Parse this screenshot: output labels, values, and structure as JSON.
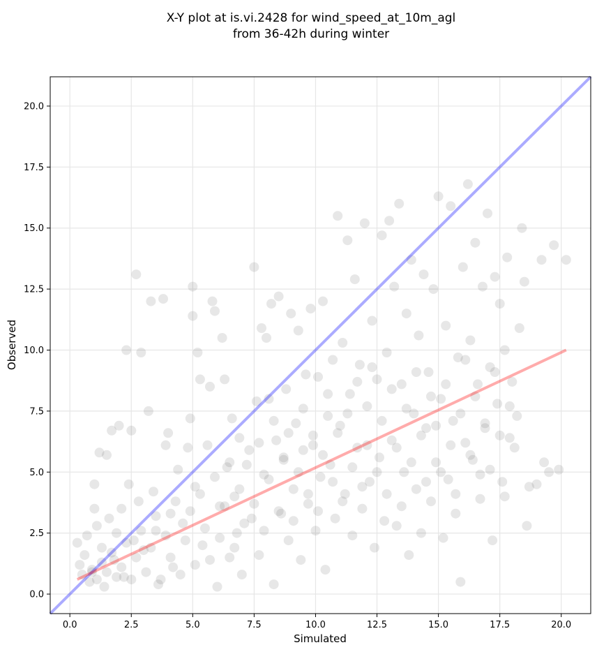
{
  "chart_data": {
    "type": "scatter",
    "title_lines": [
      "X-Y plot at is.vi.2428 for wind_speed_at_10m_agl",
      "from 36-42h during winter"
    ],
    "xlabel": "Simulated",
    "ylabel": "Observed",
    "xlim": [
      -0.8,
      21.2
    ],
    "ylim": [
      -0.8,
      21.2
    ],
    "x_ticks": [
      0.0,
      2.5,
      5.0,
      7.5,
      10.0,
      12.5,
      15.0,
      17.5,
      20.0
    ],
    "y_ticks": [
      0.0,
      2.5,
      5.0,
      7.5,
      10.0,
      12.5,
      15.0,
      17.5,
      20.0
    ],
    "x_tick_labels": [
      "0.0",
      "2.5",
      "5.0",
      "7.5",
      "10.0",
      "12.5",
      "15.0",
      "17.5",
      "20.0"
    ],
    "y_tick_labels": [
      "0.0",
      "2.5",
      "5.0",
      "7.5",
      "10.0",
      "12.5",
      "15.0",
      "17.5",
      "20.0"
    ],
    "grid": true,
    "marker_color": "#555555",
    "reference_line": {
      "points": [
        [
          -0.8,
          -0.8
        ],
        [
          21.2,
          21.2
        ]
      ],
      "color": "#0000ff"
    },
    "fit_line": {
      "points": [
        [
          0.3,
          0.6
        ],
        [
          20.2,
          10.0
        ]
      ],
      "color": "#ff0000"
    },
    "points": [
      [
        0.3,
        2.1
      ],
      [
        0.4,
        1.2
      ],
      [
        0.5,
        0.8
      ],
      [
        0.6,
        1.6
      ],
      [
        0.7,
        2.4
      ],
      [
        0.8,
        0.5
      ],
      [
        0.9,
        1.0
      ],
      [
        1.0,
        4.5
      ],
      [
        1.0,
        3.5
      ],
      [
        1.1,
        2.8
      ],
      [
        1.2,
        5.8
      ],
      [
        1.3,
        1.9
      ],
      [
        1.4,
        0.3
      ],
      [
        1.5,
        5.7
      ],
      [
        1.6,
        3.1
      ],
      [
        1.7,
        6.7
      ],
      [
        1.8,
        1.4
      ],
      [
        1.9,
        2.5
      ],
      [
        2.0,
        6.9
      ],
      [
        2.1,
        3.5
      ],
      [
        2.2,
        0.7
      ],
      [
        2.3,
        10.0
      ],
      [
        2.4,
        4.5
      ],
      [
        2.5,
        6.7
      ],
      [
        2.6,
        2.2
      ],
      [
        2.7,
        13.1
      ],
      [
        2.8,
        3.8
      ],
      [
        2.9,
        9.9
      ],
      [
        3.0,
        1.8
      ],
      [
        3.2,
        7.5
      ],
      [
        3.3,
        12.0
      ],
      [
        3.4,
        4.2
      ],
      [
        3.5,
        2.6
      ],
      [
        3.6,
        0.4
      ],
      [
        3.8,
        12.1
      ],
      [
        3.9,
        6.1
      ],
      [
        4.0,
        6.6
      ],
      [
        4.1,
        3.3
      ],
      [
        4.2,
        1.1
      ],
      [
        4.4,
        5.1
      ],
      [
        4.6,
        2.9
      ],
      [
        4.8,
        6.0
      ],
      [
        4.9,
        7.2
      ],
      [
        5.0,
        12.6
      ],
      [
        5.0,
        11.4
      ],
      [
        5.1,
        4.4
      ],
      [
        5.2,
        9.9
      ],
      [
        5.3,
        8.8
      ],
      [
        5.4,
        2.0
      ],
      [
        5.6,
        6.1
      ],
      [
        5.7,
        8.5
      ],
      [
        5.8,
        12.0
      ],
      [
        5.9,
        11.6
      ],
      [
        6.0,
        0.3
      ],
      [
        6.1,
        3.6
      ],
      [
        6.2,
        10.5
      ],
      [
        6.3,
        8.8
      ],
      [
        6.4,
        5.2
      ],
      [
        6.5,
        1.5
      ],
      [
        6.6,
        7.2
      ],
      [
        6.7,
        4.0
      ],
      [
        6.8,
        2.5
      ],
      [
        6.9,
        6.4
      ],
      [
        7.0,
        0.8
      ],
      [
        7.2,
        5.3
      ],
      [
        7.4,
        3.1
      ],
      [
        7.5,
        13.4
      ],
      [
        7.6,
        7.9
      ],
      [
        7.7,
        1.6
      ],
      [
        7.8,
        10.9
      ],
      [
        7.9,
        4.9
      ],
      [
        8.0,
        10.5
      ],
      [
        8.1,
        8.0
      ],
      [
        8.2,
        11.9
      ],
      [
        8.3,
        0.4
      ],
      [
        8.4,
        6.3
      ],
      [
        8.5,
        12.2
      ],
      [
        8.6,
        3.3
      ],
      [
        8.7,
        5.6
      ],
      [
        8.8,
        8.4
      ],
      [
        8.9,
        2.2
      ],
      [
        9.0,
        11.5
      ],
      [
        9.1,
        4.3
      ],
      [
        9.2,
        7.0
      ],
      [
        9.3,
        10.8
      ],
      [
        9.4,
        1.4
      ],
      [
        9.5,
        5.9
      ],
      [
        9.6,
        9.0
      ],
      [
        9.7,
        3.7
      ],
      [
        9.8,
        11.7
      ],
      [
        9.9,
        6.5
      ],
      [
        10.0,
        2.6
      ],
      [
        10.1,
        8.9
      ],
      [
        10.2,
        4.8
      ],
      [
        10.3,
        12.0
      ],
      [
        10.4,
        1.0
      ],
      [
        10.5,
        7.3
      ],
      [
        10.6,
        5.3
      ],
      [
        10.7,
        9.6
      ],
      [
        10.8,
        3.1
      ],
      [
        10.9,
        15.5
      ],
      [
        11.0,
        6.9
      ],
      [
        11.1,
        10.3
      ],
      [
        11.2,
        4.1
      ],
      [
        11.3,
        14.5
      ],
      [
        11.4,
        8.2
      ],
      [
        11.5,
        2.4
      ],
      [
        11.6,
        12.9
      ],
      [
        11.7,
        6.0
      ],
      [
        11.8,
        9.4
      ],
      [
        11.9,
        3.5
      ],
      [
        12.0,
        15.2
      ],
      [
        12.1,
        7.7
      ],
      [
        12.2,
        4.6
      ],
      [
        12.3,
        11.2
      ],
      [
        12.4,
        1.9
      ],
      [
        12.5,
        8.8
      ],
      [
        12.6,
        5.6
      ],
      [
        12.7,
        14.7
      ],
      [
        12.8,
        3.0
      ],
      [
        12.9,
        9.9
      ],
      [
        13.0,
        15.3
      ],
      [
        13.1,
        6.3
      ],
      [
        13.2,
        12.6
      ],
      [
        13.3,
        2.8
      ],
      [
        13.4,
        16.0
      ],
      [
        13.5,
        8.6
      ],
      [
        13.6,
        5.0
      ],
      [
        13.7,
        11.5
      ],
      [
        13.8,
        1.6
      ],
      [
        13.9,
        13.7
      ],
      [
        14.0,
        7.4
      ],
      [
        14.1,
        4.3
      ],
      [
        14.2,
        10.6
      ],
      [
        14.3,
        2.5
      ],
      [
        14.4,
        13.1
      ],
      [
        14.5,
        6.8
      ],
      [
        14.6,
        9.1
      ],
      [
        14.7,
        3.8
      ],
      [
        14.8,
        12.5
      ],
      [
        14.9,
        5.4
      ],
      [
        15.0,
        16.3
      ],
      [
        15.1,
        8.0
      ],
      [
        15.2,
        2.3
      ],
      [
        15.3,
        11.0
      ],
      [
        15.4,
        4.7
      ],
      [
        15.5,
        15.9
      ],
      [
        15.6,
        7.1
      ],
      [
        15.7,
        3.3
      ],
      [
        15.8,
        9.7
      ],
      [
        15.9,
        0.5
      ],
      [
        16.0,
        13.4
      ],
      [
        16.1,
        6.2
      ],
      [
        16.2,
        16.8
      ],
      [
        16.3,
        10.4
      ],
      [
        16.4,
        5.5
      ],
      [
        16.5,
        14.4
      ],
      [
        16.6,
        8.6
      ],
      [
        16.7,
        3.9
      ],
      [
        16.8,
        12.6
      ],
      [
        16.9,
        6.8
      ],
      [
        17.0,
        15.6
      ],
      [
        17.1,
        9.3
      ],
      [
        17.2,
        2.2
      ],
      [
        17.3,
        13.0
      ],
      [
        17.4,
        7.8
      ],
      [
        17.5,
        11.9
      ],
      [
        17.6,
        4.6
      ],
      [
        17.7,
        10.0
      ],
      [
        17.8,
        13.8
      ],
      [
        17.9,
        6.4
      ],
      [
        18.0,
        8.7
      ],
      [
        18.2,
        7.3
      ],
      [
        18.3,
        10.9
      ],
      [
        18.4,
        15.0
      ],
      [
        18.5,
        12.8
      ],
      [
        18.6,
        2.8
      ],
      [
        18.7,
        4.4
      ],
      [
        19.0,
        4.5
      ],
      [
        19.2,
        13.7
      ],
      [
        19.3,
        5.4
      ],
      [
        19.5,
        5.0
      ],
      [
        19.7,
        14.3
      ],
      [
        19.9,
        5.1
      ],
      [
        20.2,
        13.7
      ],
      [
        0.9,
        0.9
      ],
      [
        1.1,
        0.6
      ],
      [
        1.3,
        1.3
      ],
      [
        1.5,
        0.9
      ],
      [
        1.7,
        1.7
      ],
      [
        1.9,
        0.7
      ],
      [
        2.1,
        1.1
      ],
      [
        2.3,
        2.1
      ],
      [
        2.5,
        0.6
      ],
      [
        2.7,
        1.5
      ],
      [
        2.9,
        2.6
      ],
      [
        3.1,
        0.9
      ],
      [
        3.3,
        1.9
      ],
      [
        3.5,
        3.2
      ],
      [
        3.7,
        0.6
      ],
      [
        3.9,
        2.4
      ],
      [
        4.1,
        1.5
      ],
      [
        4.3,
        3.8
      ],
      [
        4.5,
        0.8
      ],
      [
        4.7,
        2.2
      ],
      [
        4.9,
        3.4
      ],
      [
        5.1,
        1.2
      ],
      [
        5.3,
        4.1
      ],
      [
        5.5,
        2.7
      ],
      [
        5.7,
        1.4
      ],
      [
        5.9,
        4.8
      ],
      [
        6.1,
        2.3
      ],
      [
        6.3,
        3.6
      ],
      [
        6.5,
        5.4
      ],
      [
        6.7,
        1.9
      ],
      [
        6.9,
        4.3
      ],
      [
        7.1,
        2.9
      ],
      [
        7.3,
        5.9
      ],
      [
        7.5,
        3.7
      ],
      [
        7.7,
        6.2
      ],
      [
        7.9,
        2.6
      ],
      [
        8.1,
        4.7
      ],
      [
        8.3,
        7.1
      ],
      [
        8.5,
        3.4
      ],
      [
        8.7,
        5.5
      ],
      [
        8.9,
        6.6
      ],
      [
        9.1,
        3.0
      ],
      [
        9.3,
        5.0
      ],
      [
        9.5,
        7.6
      ],
      [
        9.7,
        4.1
      ],
      [
        9.9,
        6.1
      ],
      [
        10.1,
        3.4
      ],
      [
        10.3,
        5.7
      ],
      [
        10.5,
        8.2
      ],
      [
        10.7,
        4.6
      ],
      [
        10.9,
        6.6
      ],
      [
        11.1,
        3.8
      ],
      [
        11.3,
        7.4
      ],
      [
        11.5,
        5.2
      ],
      [
        11.7,
        8.7
      ],
      [
        11.9,
        4.4
      ],
      [
        12.1,
        6.1
      ],
      [
        12.3,
        9.3
      ],
      [
        12.5,
        5.0
      ],
      [
        12.7,
        7.1
      ],
      [
        12.9,
        4.1
      ],
      [
        13.1,
        8.4
      ],
      [
        13.3,
        6.0
      ],
      [
        13.5,
        3.6
      ],
      [
        13.7,
        7.6
      ],
      [
        13.9,
        5.4
      ],
      [
        14.1,
        9.1
      ],
      [
        14.3,
        6.5
      ],
      [
        14.5,
        4.6
      ],
      [
        14.7,
        8.1
      ],
      [
        14.9,
        6.9
      ],
      [
        15.1,
        5.0
      ],
      [
        15.3,
        8.6
      ],
      [
        15.5,
        6.1
      ],
      [
        15.7,
        4.1
      ],
      [
        15.9,
        7.4
      ],
      [
        16.1,
        9.6
      ],
      [
        16.3,
        5.7
      ],
      [
        16.5,
        8.1
      ],
      [
        16.7,
        4.9
      ],
      [
        16.9,
        7.0
      ],
      [
        17.1,
        5.1
      ],
      [
        17.3,
        9.1
      ],
      [
        17.5,
        6.5
      ],
      [
        17.7,
        4.0
      ],
      [
        17.9,
        7.7
      ],
      [
        18.1,
        6.0
      ]
    ]
  }
}
